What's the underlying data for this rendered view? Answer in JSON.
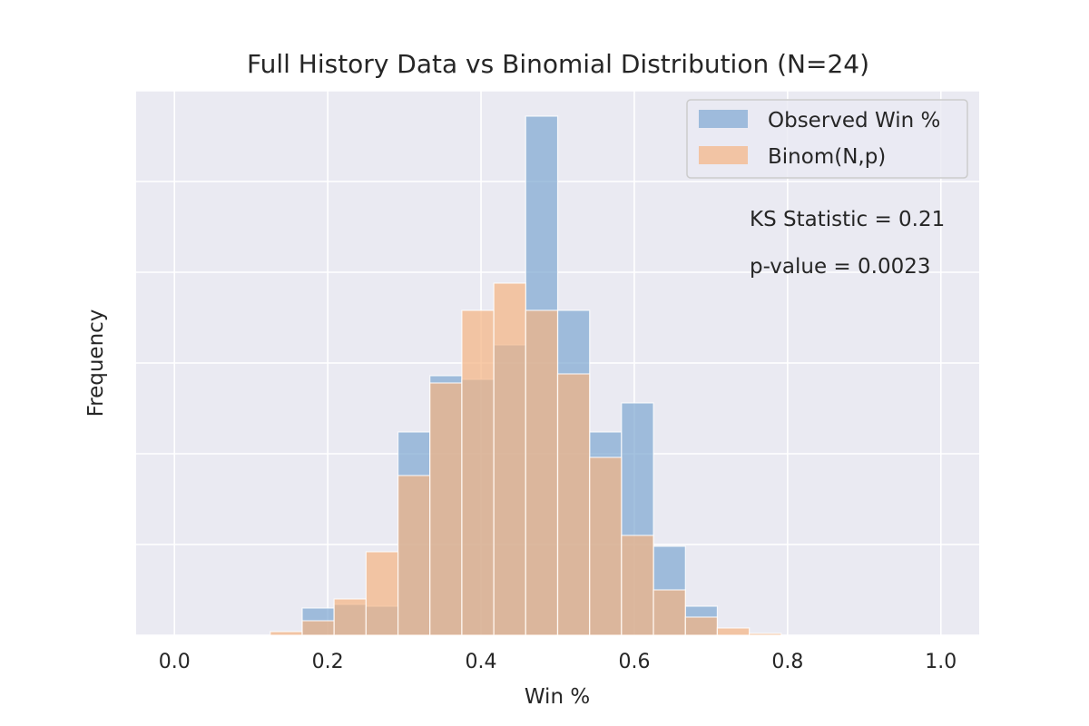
{
  "chart_data": {
    "type": "histogram",
    "title": "Full History Data vs Binomial Distribution (N=24)",
    "xlabel": "Win %",
    "ylabel": "Frequency",
    "xlim": [
      -0.05,
      1.05
    ],
    "ylim": [
      0,
      30
    ],
    "x_ticks": [
      0.0,
      0.2,
      0.4,
      0.6,
      0.8,
      1.0
    ],
    "x_tick_labels": [
      "0.0",
      "0.2",
      "0.4",
      "0.6",
      "0.8",
      "1.0"
    ],
    "y_gridlines": [
      0,
      5,
      10,
      15,
      20,
      25,
      30
    ],
    "grid": true,
    "legend_position": "top-right",
    "bin_edges": [
      0.125,
      0.1667,
      0.2083,
      0.25,
      0.2917,
      0.3333,
      0.375,
      0.4167,
      0.4583,
      0.5,
      0.5417,
      0.5833,
      0.625,
      0.6667,
      0.7083,
      0.75,
      0.7917
    ],
    "series": [
      {
        "name": "Observed Win %",
        "color": "#7ea6d1",
        "values": [
          0,
          1.5,
          1.7,
          1.6,
          11.2,
          14.3,
          14.1,
          16.0,
          28.6,
          17.9,
          11.2,
          12.8,
          4.9,
          1.6,
          0,
          0
        ]
      },
      {
        "name": "Binom(N,p)",
        "color": "#f5b482",
        "values": [
          0.2,
          0.8,
          2.0,
          4.6,
          8.8,
          13.9,
          17.9,
          19.4,
          17.9,
          14.4,
          9.8,
          5.5,
          2.5,
          1.0,
          0.4,
          0.1
        ]
      }
    ],
    "annotations": [
      "KS Statistic = 0.21",
      "p-value = 0.0023"
    ]
  }
}
